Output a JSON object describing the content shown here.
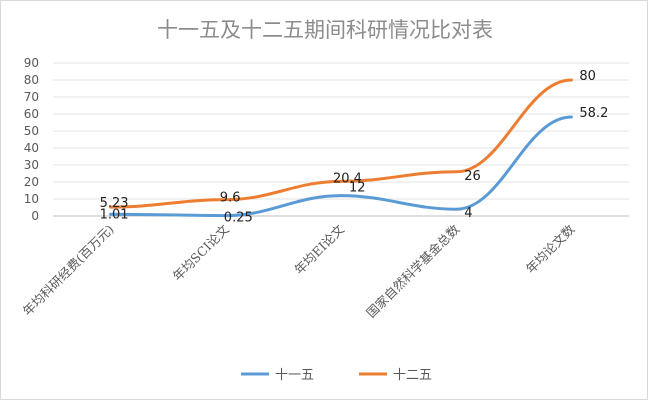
{
  "chart_data": {
    "type": "line",
    "title": "十一五及十二五期间科研情况比对表",
    "xlabel": "",
    "ylabel": "",
    "categories": [
      "年均科研经费(百万元)",
      "年均SCI论文",
      "年均EI论文",
      "国家自然科学基金总数",
      "年均论文数"
    ],
    "yticks": [
      "0",
      "10",
      "20",
      "30",
      "40",
      "50",
      "60",
      "70",
      "80",
      "90"
    ],
    "ylim": [
      0,
      90
    ],
    "grid": true,
    "legend_position": "bottom",
    "series": [
      {
        "name": "十一五",
        "color": "#5b9bd5",
        "values": [
          1.01,
          0.25,
          12,
          4,
          58.2
        ],
        "labels": [
          "1.01",
          "0.25",
          "12",
          "4",
          "58.2"
        ]
      },
      {
        "name": "十二五",
        "color": "#ed7d31",
        "values": [
          5.23,
          9.6,
          20.4,
          26,
          80
        ],
        "labels": [
          "5.23",
          "9.6",
          "20.4",
          "26",
          "80"
        ]
      }
    ]
  }
}
